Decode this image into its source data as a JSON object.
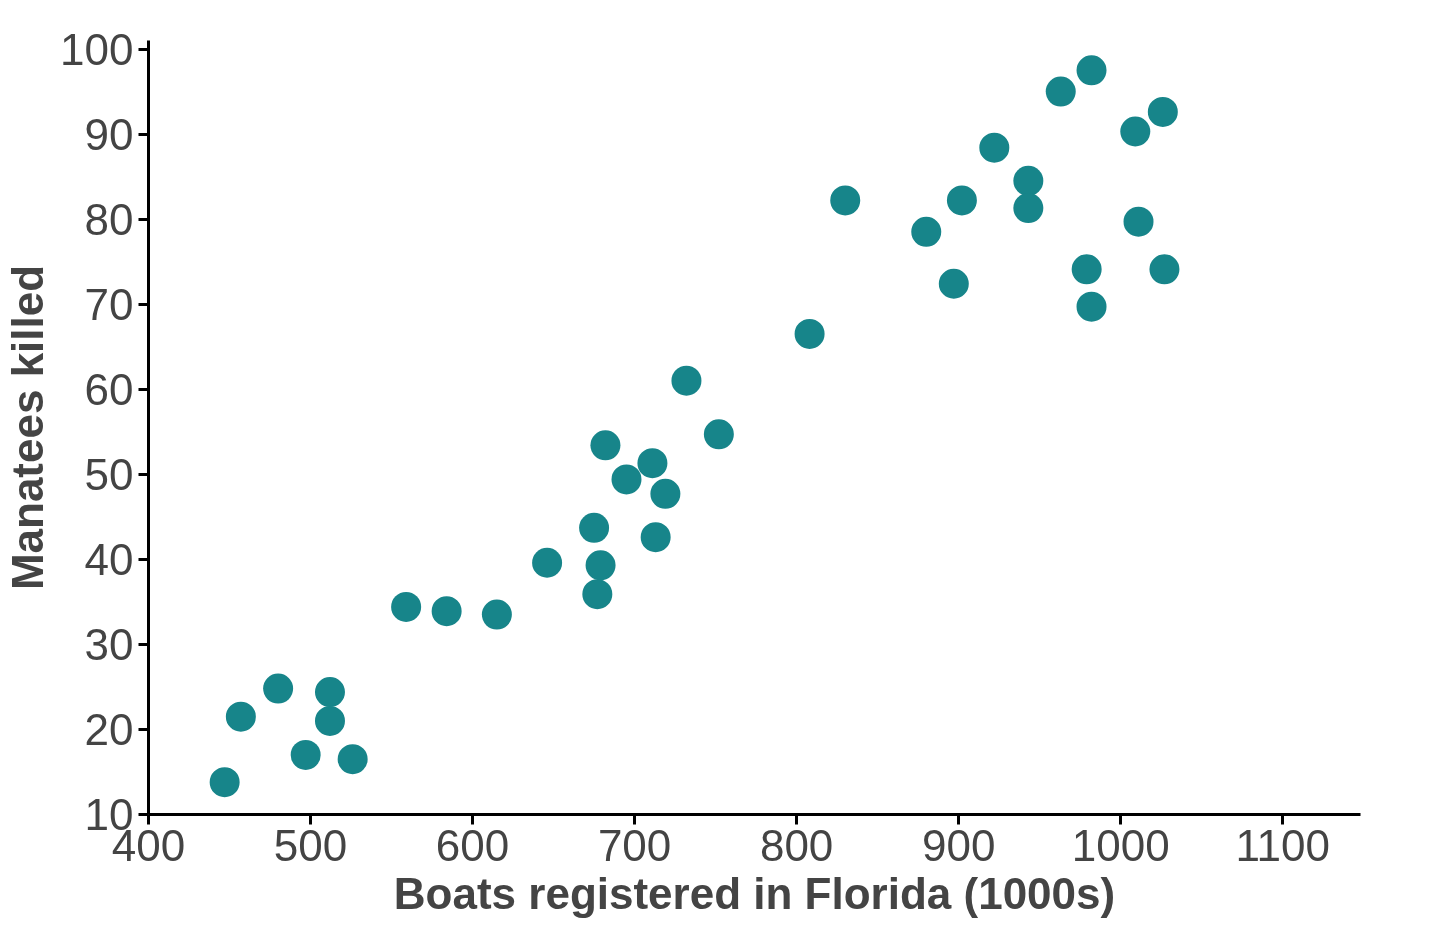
{
  "chart_data": {
    "type": "scatter",
    "xlabel": "Boats registered in Florida (1000s)",
    "ylabel": "Manatees killed",
    "x": [
      447,
      457,
      480,
      497,
      512,
      512,
      526,
      559,
      584,
      615,
      646,
      675,
      679,
      677,
      682,
      695,
      711,
      719,
      713,
      732,
      752,
      808,
      830,
      880,
      897,
      902,
      922,
      943,
      943,
      963,
      982,
      979,
      982,
      1009,
      1011,
      1026,
      1027
    ],
    "series": [
      {
        "color": "#17858a",
        "values": [
          13.8,
          21.5,
          24.8,
          17,
          21,
          24.4,
          16.5,
          34.4,
          33.9,
          33.5,
          39.6,
          43.7,
          39.3,
          35.9,
          53.4,
          49.4,
          51.3,
          47.7,
          42.6,
          61,
          54.7,
          66.5,
          82.2,
          78.5,
          72.4,
          82.2,
          88.4,
          84.5,
          81.3,
          95,
          97.5,
          74.1,
          69.7,
          90.3,
          79.7,
          92.6,
          74.1
        ]
      }
    ],
    "xlim": [
      400,
      1148
    ],
    "ylim": [
      10,
      101
    ],
    "xticks": [
      400,
      500,
      600,
      700,
      800,
      900,
      1000,
      1100
    ],
    "yticks": [
      10,
      20,
      30,
      40,
      50,
      60,
      70,
      80,
      90,
      100
    ],
    "grid": false,
    "marker": "circle"
  }
}
